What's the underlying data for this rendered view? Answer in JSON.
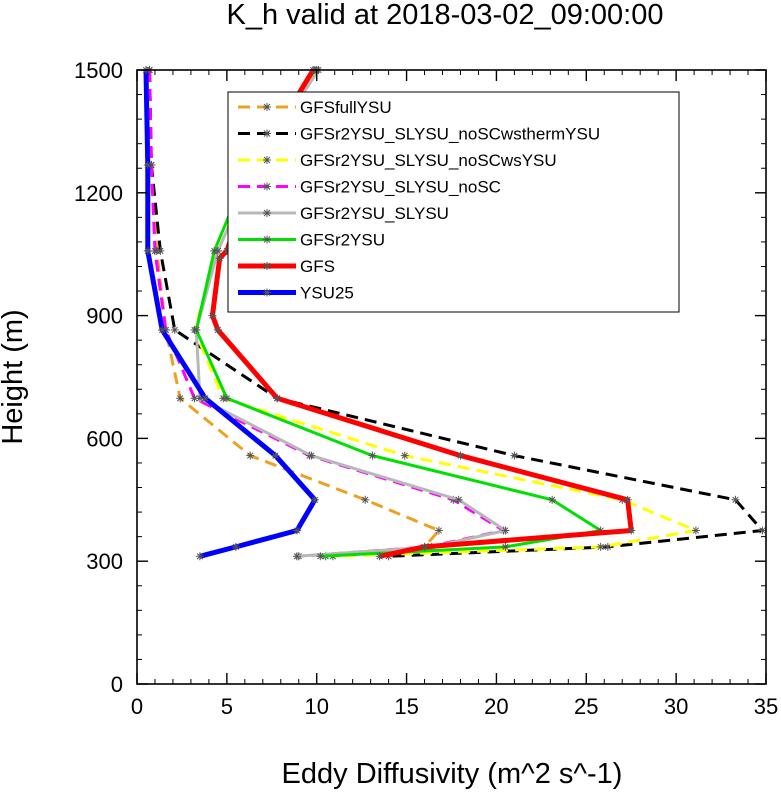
{
  "chart_data": {
    "type": "line",
    "title": "K_h valid at 2018-03-02_09:00:00",
    "xlabel": "Eddy Diffusivity (m^2 s^-1)",
    "ylabel": "Height (m)",
    "xlim": [
      0,
      35
    ],
    "ylim": [
      0,
      1500
    ],
    "xticks": [
      "0",
      "5",
      "10",
      "15",
      "20",
      "25",
      "30",
      "35"
    ],
    "yticks": [
      "0",
      "300",
      "600",
      "900",
      "1200",
      "1500"
    ],
    "grid": false,
    "legend_position": "top-center",
    "series": [
      {
        "name": "GFSfullYSU",
        "color": "#f0a020",
        "dash": "dashed",
        "x": [
          0.7,
          0.8,
          1.1,
          1.6,
          2.4,
          6.3,
          12.7,
          16.8,
          16.0,
          15.8,
          10.5
        ],
        "y": [
          1500,
          1268,
          1058,
          865,
          698,
          558,
          450,
          375,
          335,
          330,
          312
        ]
      },
      {
        "name": "GFSr2YSU_SLYSU_noSCwsthermYSU",
        "color": "#000000",
        "dash": "dashed",
        "x": [
          0.7,
          0.8,
          1.3,
          2.1,
          7.8,
          21.0,
          33.3,
          34.8,
          26.2,
          14.0
        ],
        "y": [
          1500,
          1268,
          1058,
          865,
          698,
          558,
          450,
          375,
          335,
          312
        ]
      },
      {
        "name": "GFSr2YSU_SLYSU_noSCwsYSU",
        "color": "#ffff00",
        "dash": "dashed",
        "x": [
          10.0,
          6.5,
          4.5,
          3.2,
          4.8,
          14.9,
          27.0,
          31.1,
          25.8,
          10.9
        ],
        "y": [
          1500,
          1268,
          1058,
          865,
          698,
          558,
          450,
          375,
          335,
          312
        ]
      },
      {
        "name": "GFSr2YSU_SLYSU_noSC",
        "color": "#ff00ff",
        "dash": "dashed",
        "x": [
          0.7,
          0.8,
          1.0,
          1.6,
          3.2,
          9.6,
          17.6,
          20.4,
          16.2,
          9.0
        ],
        "y": [
          1500,
          1268,
          1058,
          865,
          698,
          558,
          450,
          375,
          335,
          312
        ]
      },
      {
        "name": "GFSr2YSU_SLYSU",
        "color": "#b8b8b8",
        "dash": "solid",
        "x": [
          10.1,
          6.6,
          4.5,
          3.3,
          3.5,
          9.7,
          17.9,
          20.5,
          16.4,
          8.9
        ],
        "y": [
          1500,
          1268,
          1058,
          865,
          698,
          558,
          450,
          375,
          335,
          312
        ]
      },
      {
        "name": "GFSr2YSU",
        "color": "#00e000",
        "dash": "solid",
        "x": [
          9.9,
          6.3,
          4.3,
          3.3,
          5.0,
          13.1,
          23.1,
          25.8,
          20.5,
          10.2
        ],
        "y": [
          1500,
          1268,
          1058,
          865,
          698,
          558,
          450,
          375,
          335,
          312
        ]
      },
      {
        "name": "GFS",
        "color": "#ff0000",
        "dash": "solid",
        "x": [
          9.8,
          6.6,
          5.0,
          4.6,
          4.2,
          4.5,
          7.8,
          18.0,
          27.3,
          27.5,
          16.0,
          13.5
        ],
        "y": [
          1500,
          1268,
          1058,
          1040,
          900,
          865,
          698,
          558,
          450,
          375,
          335,
          312
        ]
      },
      {
        "name": "YSU25",
        "color": "#0000ff",
        "dash": "solid",
        "x": [
          0.5,
          0.6,
          0.6,
          1.4,
          3.8,
          7.7,
          9.9,
          8.9,
          5.5,
          3.5
        ],
        "y": [
          1500,
          1268,
          1058,
          865,
          698,
          558,
          450,
          375,
          335,
          312
        ]
      }
    ]
  }
}
